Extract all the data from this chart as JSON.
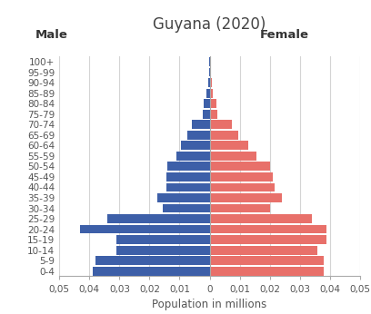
{
  "title": "Guyana (2020)",
  "xlabel": "Population in millions",
  "male_label": "Male",
  "female_label": "Female",
  "age_groups": [
    "0-4",
    "5-9",
    "10-14",
    "15-19",
    "20-24",
    "25-29",
    "30-34",
    "35-39",
    "40-44",
    "45-49",
    "50-54",
    "55-59",
    "60-64",
    "65-69",
    "70-74",
    "75-79",
    "80-84",
    "85-89",
    "90-94",
    "95-99",
    "100+"
  ],
  "male_values": [
    0.039,
    0.038,
    0.031,
    0.031,
    0.043,
    0.034,
    0.0155,
    0.0175,
    0.0145,
    0.0145,
    0.014,
    0.011,
    0.0095,
    0.0075,
    0.006,
    0.0022,
    0.002,
    0.001,
    0.0006,
    0.0003,
    0.0001
  ],
  "female_values": [
    0.038,
    0.038,
    0.036,
    0.039,
    0.039,
    0.034,
    0.02,
    0.024,
    0.0215,
    0.021,
    0.02,
    0.0155,
    0.013,
    0.0095,
    0.0075,
    0.0025,
    0.0023,
    0.0012,
    0.0008,
    0.0005,
    0.0002
  ],
  "male_color": "#3d5fa8",
  "female_color": "#e8706a",
  "background_color": "#ffffff",
  "bar_height": 0.85,
  "xlim": 0.05,
  "title_fontsize": 12,
  "label_fontsize": 8.5,
  "tick_fontsize": 7.5,
  "grid_color": "#d4d4d4",
  "xtick_vals": [
    -0.05,
    -0.04,
    -0.03,
    -0.02,
    -0.01,
    0,
    0.01,
    0.02,
    0.03,
    0.04,
    0.05
  ],
  "xtick_labels": [
    "0,05",
    "0,04",
    "0,03",
    "0,02",
    "0,01",
    "0",
    "0,01",
    "0,02",
    "0,03",
    "0,04",
    "0,05"
  ]
}
